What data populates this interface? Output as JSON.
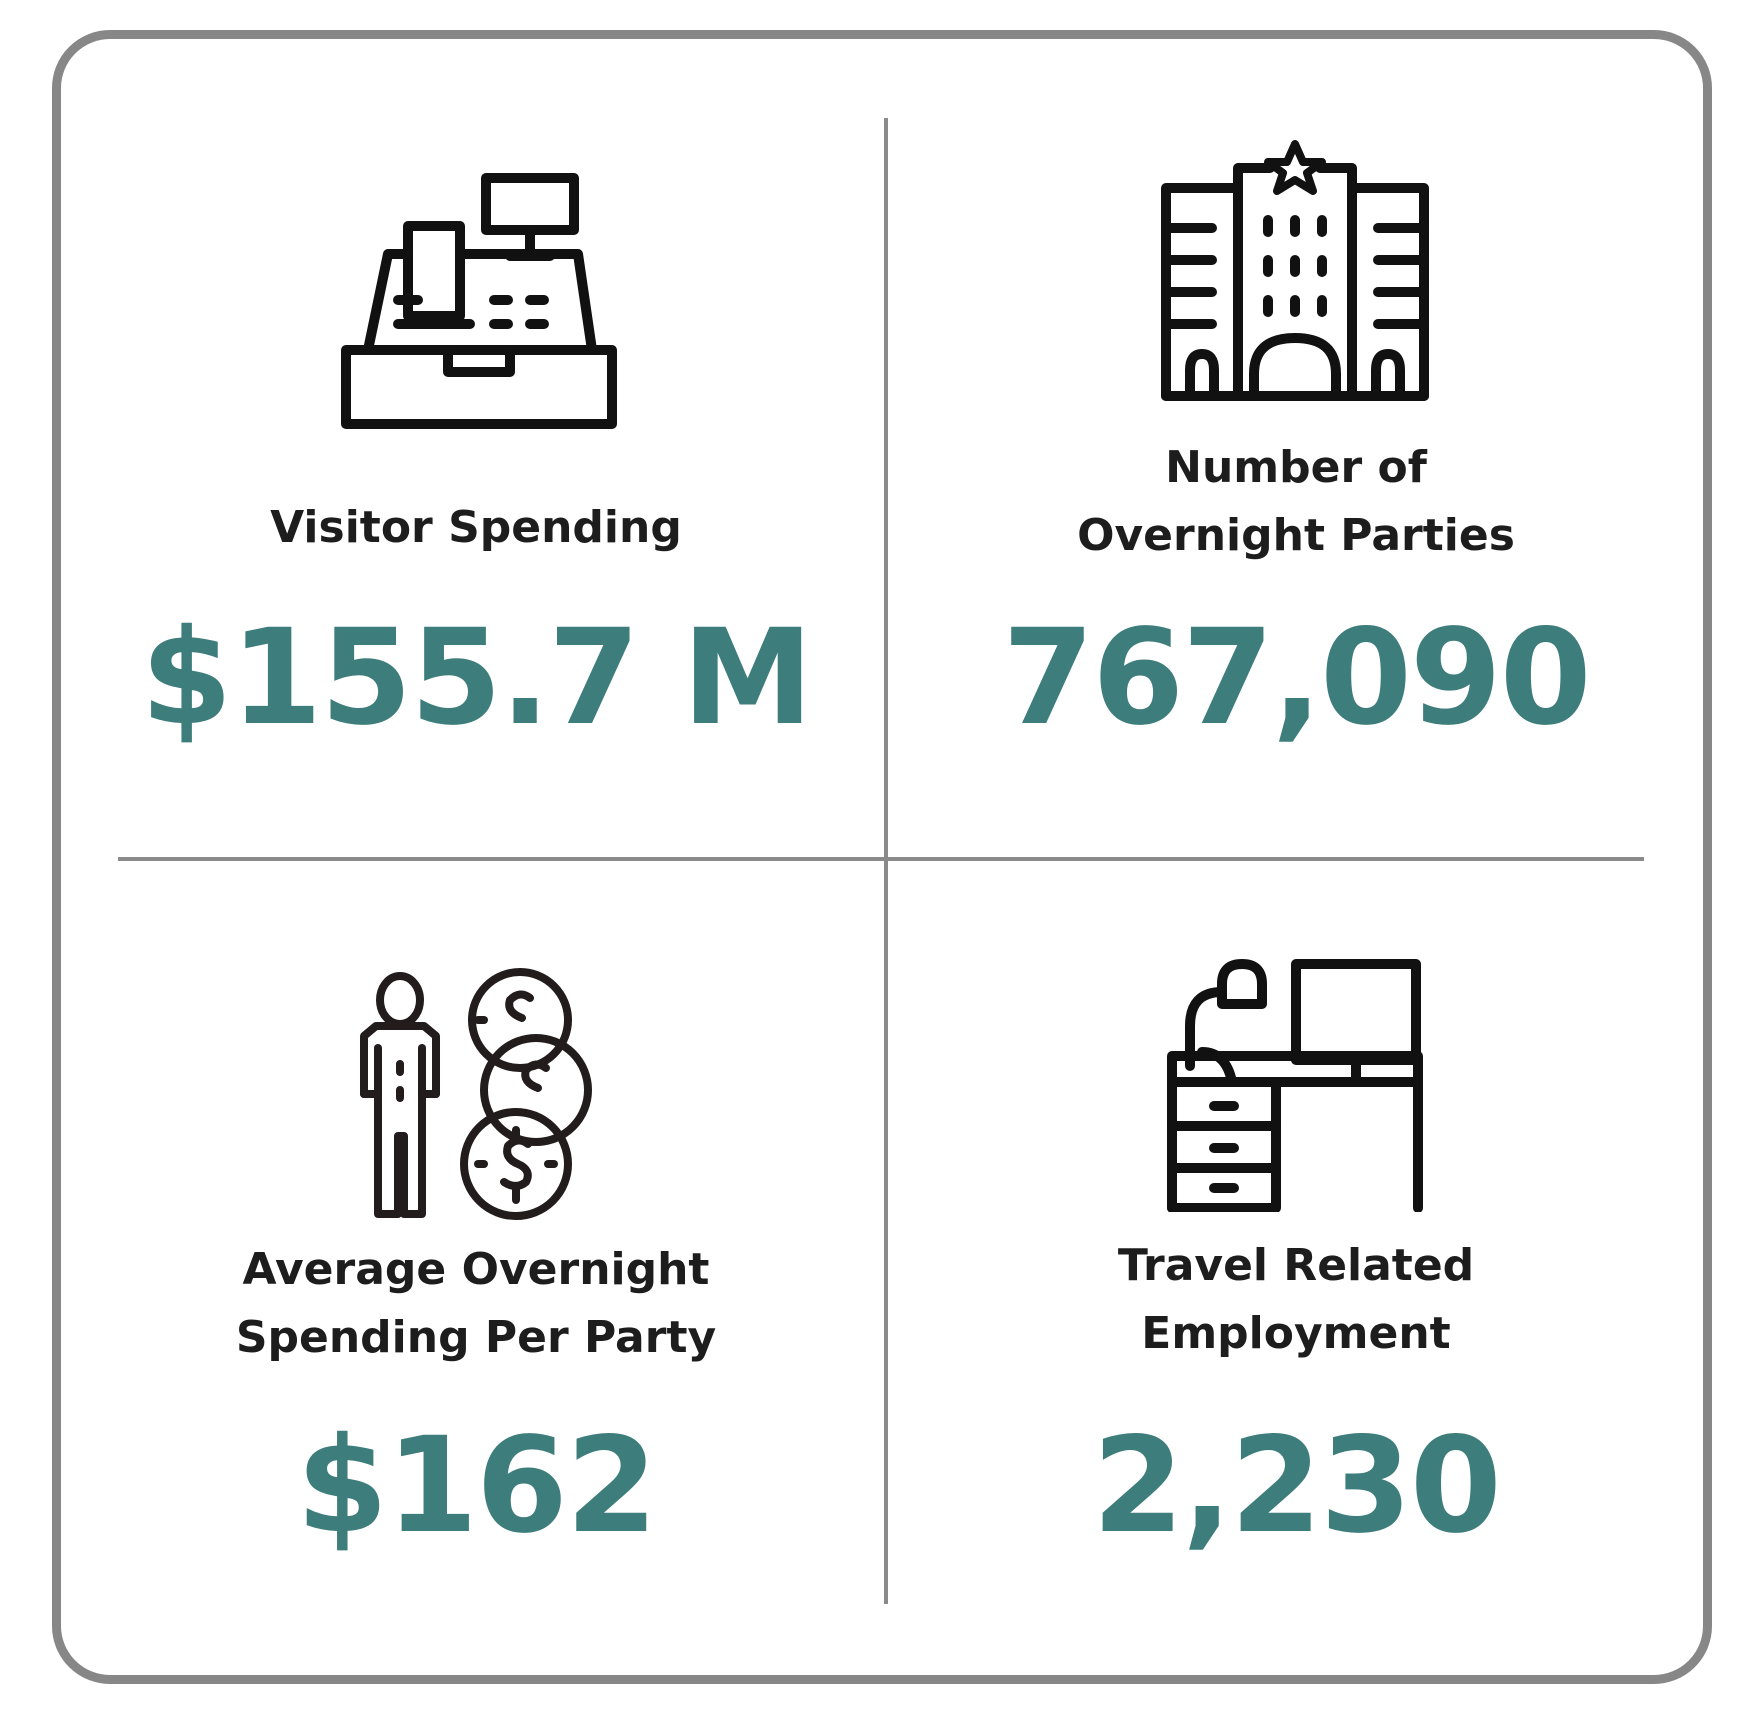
{
  "colors": {
    "accent": "#3d7d7b",
    "text": "#1d1d1d",
    "border": "#878787",
    "divider": "#8a8a8a"
  },
  "stats": [
    {
      "icon": "cash-register-icon",
      "label_lines": [
        "Visitor Spending"
      ],
      "value": "$155.7 M"
    },
    {
      "icon": "hotel-building-icon",
      "label_lines": [
        "Number of",
        "Overnight Parties"
      ],
      "value": "767,090"
    },
    {
      "icon": "person-coins-icon",
      "label_lines": [
        "Average Overnight",
        "Spending Per Party"
      ],
      "value": "$162"
    },
    {
      "icon": "office-desk-icon",
      "label_lines": [
        "Travel Related",
        "Employment"
      ],
      "value": "2,230"
    }
  ]
}
